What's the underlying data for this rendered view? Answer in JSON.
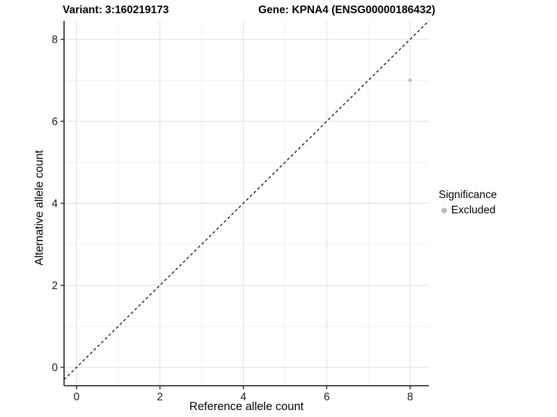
{
  "header": {
    "left_title": "Variant: 3:160219173",
    "right_title": "Gene: KPNA4 (ENSG00000186432)"
  },
  "chart_data": {
    "type": "scatter",
    "title": "Variant: 3:160219173    Gene: KPNA4 (ENSG00000186432)",
    "xlabel": "Reference allele count",
    "ylabel": "Alternative allele count",
    "xlim": [
      -0.3,
      8.45
    ],
    "ylim": [
      -0.45,
      8.45
    ],
    "x_ticks": [
      0,
      2,
      4,
      6,
      8
    ],
    "y_ticks": [
      0,
      2,
      4,
      6,
      8
    ],
    "x_minor_ticks": [
      1,
      3,
      5,
      7
    ],
    "y_minor_ticks": [
      1,
      3,
      5,
      7
    ],
    "grid": true,
    "abline": {
      "slope": 1,
      "intercept": 0,
      "style": "dashed",
      "color": "#111111"
    },
    "series": [
      {
        "name": "Excluded",
        "color": "#bcbcbc",
        "points": [
          {
            "x": 8,
            "y": 7
          }
        ]
      }
    ],
    "legend": {
      "position": "right",
      "title": "Significance",
      "items": [
        {
          "label": "Excluded",
          "color": "#bcbcbc"
        }
      ]
    },
    "style": {
      "background": "#ffffff",
      "major_grid_color": "#e2e2e2",
      "minor_grid_color": "#f0f0f0",
      "axis_line_color": "#333333",
      "tick_color": "#333333",
      "tick_label_color": "#1a1a1a",
      "point_radius": 2.6
    }
  }
}
